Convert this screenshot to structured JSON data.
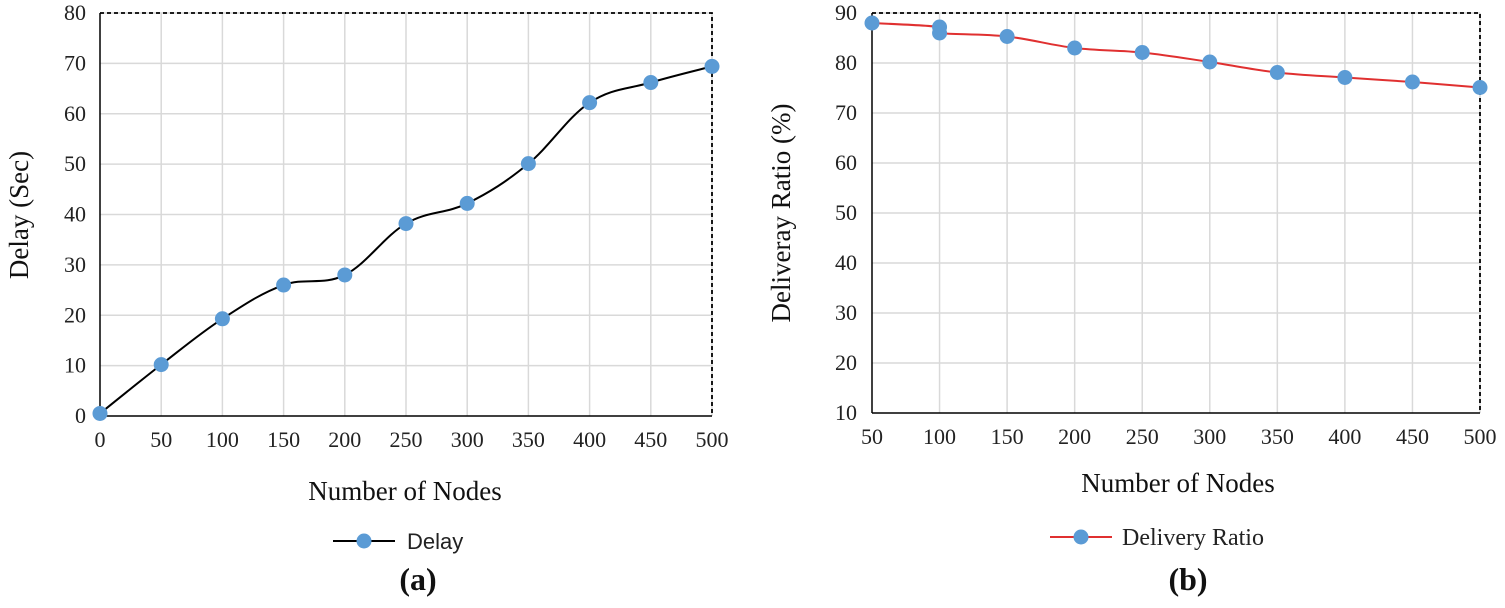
{
  "chart_data": [
    {
      "type": "line",
      "panel_label": "(a)",
      "xlabel": "Number of Nodes",
      "ylabel": "Delay (Sec)",
      "x": [
        0,
        50,
        100,
        150,
        200,
        250,
        300,
        350,
        400,
        450,
        500
      ],
      "xlim": [
        0,
        500
      ],
      "ylim": [
        0,
        80
      ],
      "x_ticks": [
        "0",
        "50",
        "100",
        "150",
        "200",
        "250",
        "300",
        "350",
        "400",
        "450",
        "500"
      ],
      "y_ticks": [
        "0",
        "10",
        "20",
        "30",
        "40",
        "50",
        "60",
        "70",
        "80"
      ],
      "series": [
        {
          "name": "Delay",
          "line_color": "#000000",
          "marker_color": "#5b9bd5",
          "values": [
            0.5,
            10.2,
            19.3,
            26,
            28,
            38.2,
            42.2,
            50.1,
            62.2,
            66.2,
            69.4
          ]
        }
      ],
      "legend_position": "bottom",
      "grid": true
    },
    {
      "type": "line",
      "panel_label": "(b)",
      "xlabel": "Number of Nodes",
      "ylabel": "Deliveray Ratio (%)",
      "x": [
        50,
        100,
        100,
        150,
        200,
        250,
        300,
        350,
        400,
        450,
        500
      ],
      "xlim": [
        50,
        500
      ],
      "ylim": [
        10,
        90
      ],
      "x_ticks": [
        "50",
        "100",
        "150",
        "200",
        "250",
        "300",
        "350",
        "400",
        "450",
        "500"
      ],
      "y_ticks": [
        "10",
        "20",
        "30",
        "40",
        "50",
        "60",
        "70",
        "80",
        "90"
      ],
      "series": [
        {
          "name": "Delivery Ratio",
          "line_color": "#e03030",
          "marker_color": "#5b9bd5",
          "values": [
            88,
            87.2,
            86,
            85.3,
            83,
            82.1,
            80.2,
            78.1,
            77.1,
            76.2,
            75.1
          ]
        }
      ],
      "legend_position": "bottom",
      "grid": true
    }
  ]
}
